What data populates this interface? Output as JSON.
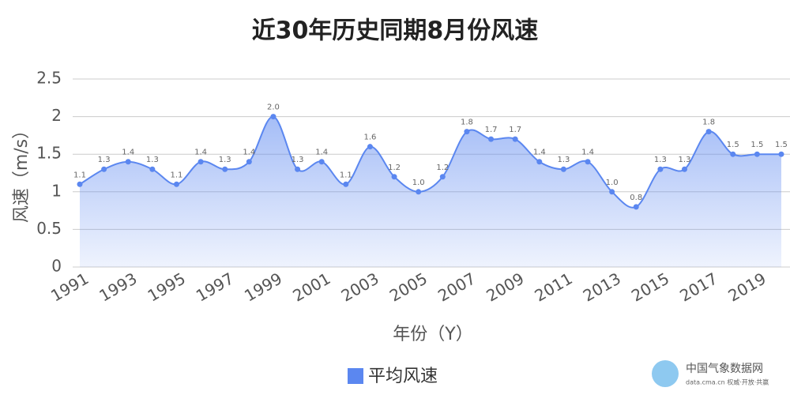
{
  "chart_data": {
    "type": "line",
    "title": "近30年历史同期8月份风速",
    "categories": [
      "1991",
      null,
      "1993",
      null,
      "1995",
      null,
      "1997",
      null,
      "1999",
      null,
      "2001",
      null,
      "2003",
      null,
      "2005",
      null,
      "2007",
      null,
      "2009",
      null,
      "2011",
      null,
      "2013",
      null,
      "2015",
      null,
      "2017",
      null,
      "2019",
      null
    ],
    "series": [
      {
        "name": "平均风速",
        "color": "#5b87f0",
        "values": [
          1.1,
          1.3,
          1.4,
          1.3,
          1.1,
          1.4,
          1.3,
          1.4,
          2.0,
          1.3,
          1.4,
          1.1,
          1.6,
          1.2,
          1.0,
          1.2,
          1.8,
          1.7,
          1.7,
          1.4,
          1.3,
          1.4,
          1.0,
          0.8,
          1.3,
          1.3,
          1.8,
          1.5,
          1.5,
          1.5
        ],
        "value_labels": [
          "1.1",
          "1.3",
          "1.4",
          "1.3",
          "1.1",
          "1.4",
          "1.3",
          "1.4",
          "2.0",
          "1.3",
          "1.4",
          "1.1",
          "1.6",
          "1.2",
          "1.0",
          "1.2",
          "1.8",
          "1.7",
          "1.7",
          "1.4",
          "1.3",
          "1.4",
          "1.0",
          "0.8",
          "1.3",
          "1.3",
          "1.8",
          "1.5",
          "1.5",
          "1.5"
        ]
      }
    ],
    "ylim": [
      0,
      2.5
    ],
    "yticks": [
      0,
      0.5,
      1,
      1.5,
      2,
      2.5
    ],
    "grid": true,
    "y_label": "风速（m/s）",
    "x_label": "年份（Y）",
    "legend": "bottom",
    "watermark": {
      "name": "中国气象数据网",
      "url": "data.cma.cn 权威·开放·共赢"
    }
  }
}
